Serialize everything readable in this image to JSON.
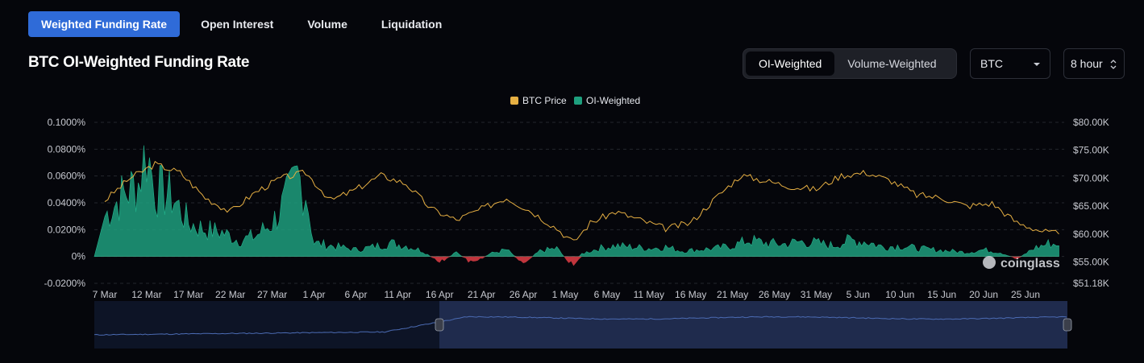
{
  "tabs": [
    "Weighted Funding Rate",
    "Open Interest",
    "Volume",
    "Liquidation"
  ],
  "title": "BTC OI-Weighted Funding Rate",
  "weighting_toggle": [
    "OI-Weighted",
    "Volume-Weighted"
  ],
  "coin_select": "BTC",
  "interval_select": "8 hour",
  "watermark": "coinglass",
  "colors": {
    "accent": "#2f6bd8",
    "positive": "#1e9f7e",
    "negative": "#d53b43",
    "price": "#e7b043"
  },
  "chart_data": {
    "type": "area",
    "legend": [
      "BTC Price",
      "OI-Weighted"
    ],
    "x_ticks": [
      "7 Mar",
      "12 Mar",
      "17 Mar",
      "22 Mar",
      "27 Mar",
      "1 Apr",
      "6 Apr",
      "11 Apr",
      "16 Apr",
      "21 Apr",
      "26 Apr",
      "1 May",
      "6 May",
      "11 May",
      "16 May",
      "21 May",
      "26 May",
      "31 May",
      "5 Jun",
      "10 Jun",
      "15 Jun",
      "20 Jun",
      "25 Jun"
    ],
    "y_left_ticks": [
      "0.1000%",
      "0.0800%",
      "0.0600%",
      "0.0400%",
      "0.0200%",
      "0%",
      "-0.0200%"
    ],
    "y_right_ticks": [
      "$80.00K",
      "$75.00K",
      "$70.00K",
      "$65.00K",
      "$60.00K",
      "$55.00K",
      "$51.18K"
    ],
    "y_left_range": [
      -0.0002,
      0.001
    ],
    "y_right_range": [
      51180,
      80000
    ],
    "grid": true,
    "legend_position": "top-center",
    "series": [
      {
        "name": "BTC Price",
        "color": "#e7b043",
        "x": [
          "7 Mar",
          "10 Mar",
          "13 Mar",
          "16 Mar",
          "19 Mar",
          "22 Mar",
          "25 Mar",
          "28 Mar",
          "31 Mar",
          "3 Apr",
          "6 Apr",
          "9 Apr",
          "12 Apr",
          "15 Apr",
          "18 Apr",
          "21 Apr",
          "24 Apr",
          "27 Apr",
          "30 Apr",
          "2 May",
          "4 May",
          "7 May",
          "10 May",
          "13 May",
          "16 May",
          "19 May",
          "22 May",
          "25 May",
          "28 May",
          "31 May",
          "3 Jun",
          "6 Jun",
          "9 Jun",
          "12 Jun",
          "15 Jun",
          "18 Jun",
          "21 Jun",
          "24 Jun",
          "27 Jun",
          "29 Jun"
        ],
        "values": [
          66000,
          70000,
          72500,
          71000,
          66500,
          64000,
          67500,
          70000,
          71000,
          66000,
          68000,
          70500,
          69000,
          64500,
          62500,
          64500,
          66500,
          64000,
          61000,
          58500,
          62000,
          64000,
          62500,
          61000,
          62000,
          66500,
          70500,
          69500,
          68500,
          68000,
          70500,
          71000,
          69500,
          67000,
          66500,
          65000,
          65500,
          62000,
          60500,
          60000
        ]
      },
      {
        "name": "OI-Weighted",
        "color": "#1e9f7e",
        "x": [
          "7 Mar",
          "9 Mar",
          "11 Mar",
          "12 Mar",
          "13 Mar",
          "15 Mar",
          "17 Mar",
          "19 Mar",
          "21 Mar",
          "23 Mar",
          "25 Mar",
          "27 Mar",
          "29 Mar",
          "30 Mar",
          "31 Mar",
          "1 Apr",
          "3 Apr",
          "6 Apr",
          "8 Apr",
          "10 Apr",
          "12 Apr",
          "14 Apr",
          "16 Apr",
          "18 Apr",
          "20 Apr",
          "22 Apr",
          "24 Apr",
          "26 Apr",
          "28 Apr",
          "30 Apr",
          "2 May",
          "3 May",
          "5 May",
          "7 May",
          "9 May",
          "11 May",
          "13 May",
          "15 May",
          "17 May",
          "19 May",
          "21 May",
          "23 May",
          "25 May",
          "27 May",
          "29 May",
          "31 May",
          "2 Jun",
          "4 Jun",
          "6 Jun",
          "8 Jun",
          "10 Jun",
          "12 Jun",
          "14 Jun",
          "16 Jun",
          "18 Jun",
          "20 Jun",
          "22 Jun",
          "24 Jun",
          "26 Jun",
          "28 Jun",
          "29 Jun"
        ],
        "values": [
          0.0003,
          0.00045,
          0.00055,
          0.0008,
          0.0005,
          0.00045,
          0.00025,
          0.0002,
          0.00018,
          0.00012,
          0.00015,
          0.00025,
          0.00045,
          0.0006,
          0.0005,
          0.0001,
          8e-05,
          5e-05,
          7e-05,
          0.0001,
          8e-05,
          4e-05,
          -5e-05,
          3e-05,
          -6e-05,
          2e-05,
          5e-05,
          -5e-05,
          4e-05,
          6e-05,
          -8e-05,
          2e-05,
          6e-05,
          8e-05,
          7e-05,
          6e-05,
          7e-05,
          4e-05,
          5e-05,
          6e-05,
          8e-05,
          0.00012,
          0.0001,
          9e-05,
          0.00011,
          0.0001,
          8e-05,
          0.00012,
          0.00011,
          7e-05,
          8e-05,
          6e-05,
          5e-05,
          4e-05,
          3e-05,
          5e-05,
          3e-05,
          -2e-05,
          6e-05,
          0.0001,
          8e-05
        ]
      }
    ]
  }
}
